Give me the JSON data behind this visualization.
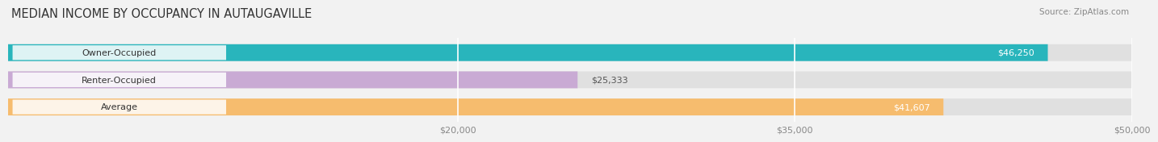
{
  "title": "MEDIAN INCOME BY OCCUPANCY IN AUTAUGAVILLE",
  "source": "Source: ZipAtlas.com",
  "categories": [
    "Owner-Occupied",
    "Renter-Occupied",
    "Average"
  ],
  "values": [
    46250,
    25333,
    41607
  ],
  "bar_colors": [
    "#29b5bc",
    "#c9aad4",
    "#f6bc6e"
  ],
  "labels": [
    "$46,250",
    "$25,333",
    "$41,607"
  ],
  "xmin": 0,
  "xmax": 50000,
  "xticks": [
    20000,
    35000,
    50000
  ],
  "xtick_labels": [
    "$20,000",
    "$35,000",
    "$50,000"
  ],
  "background_color": "#f2f2f2",
  "bar_bg_color": "#e0e0e0",
  "title_fontsize": 10.5,
  "label_fontsize": 8.0,
  "tick_fontsize": 8.0,
  "source_fontsize": 7.5
}
